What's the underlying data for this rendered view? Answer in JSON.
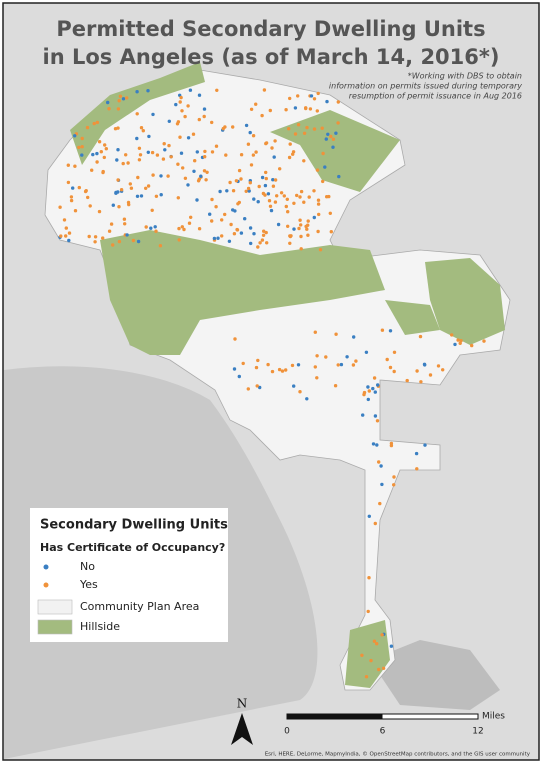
{
  "title_lines": [
    "Permitted Secondary Dwelling Units",
    "in Los Angeles (as of March 14, 2016*)"
  ],
  "note_lines": [
    "*Working with DBS to obtain",
    "information on permits issued during temporary",
    "resumption of permit issuance in Aug 2016"
  ],
  "legend": {
    "title": "Secondary Dwelling Units",
    "subtitle": "Has Certificate of Occupancy?",
    "items": [
      {
        "label": "No",
        "color": "#3a7fc2",
        "kind": "dot"
      },
      {
        "label": "Yes",
        "color": "#f0923a",
        "kind": "dot"
      },
      {
        "label": "Community Plan Area",
        "color": "#f2f2f2",
        "kind": "area"
      },
      {
        "label": "Hillside",
        "color": "#a3bb7f",
        "kind": "area"
      }
    ]
  },
  "north": "N",
  "scale_bar": {
    "unit": "Miles",
    "ticks": [
      0,
      6,
      12
    ]
  },
  "attribution": "Esri, HERE, DeLorme, MapmyIndia, © OpenStreetMap contributors, and the GIS user community"
}
